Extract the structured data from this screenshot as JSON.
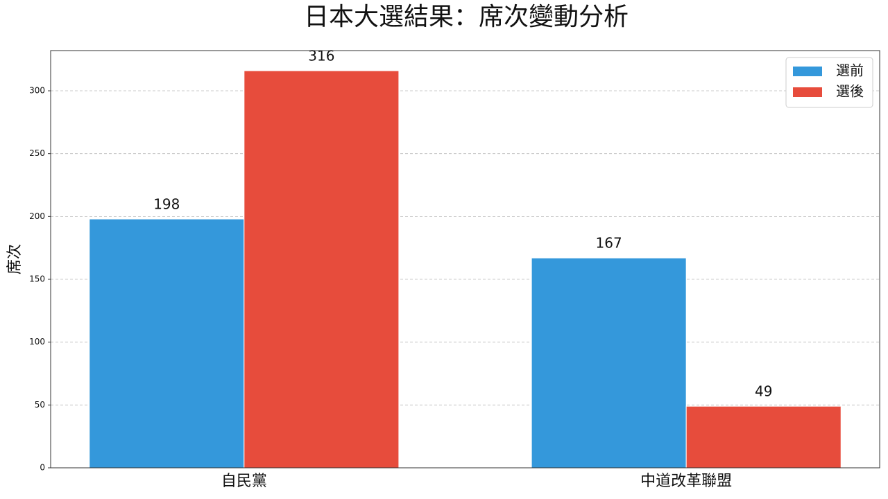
{
  "chart_data": {
    "type": "bar",
    "title": "日本大選結果：席次變動分析",
    "y_label": "席次",
    "categories": [
      "自民黨",
      "中道改革聯盟"
    ],
    "series": [
      {
        "name": "選前",
        "color": "#3498db",
        "values": [
          198,
          167
        ]
      },
      {
        "name": "選後",
        "color": "#e74c3c",
        "values": [
          316,
          49
        ]
      }
    ],
    "ylim": [
      0,
      332
    ],
    "yticks": [
      0,
      50,
      100,
      150,
      200,
      250,
      300
    ],
    "grid": true,
    "legend": "upper-right"
  }
}
